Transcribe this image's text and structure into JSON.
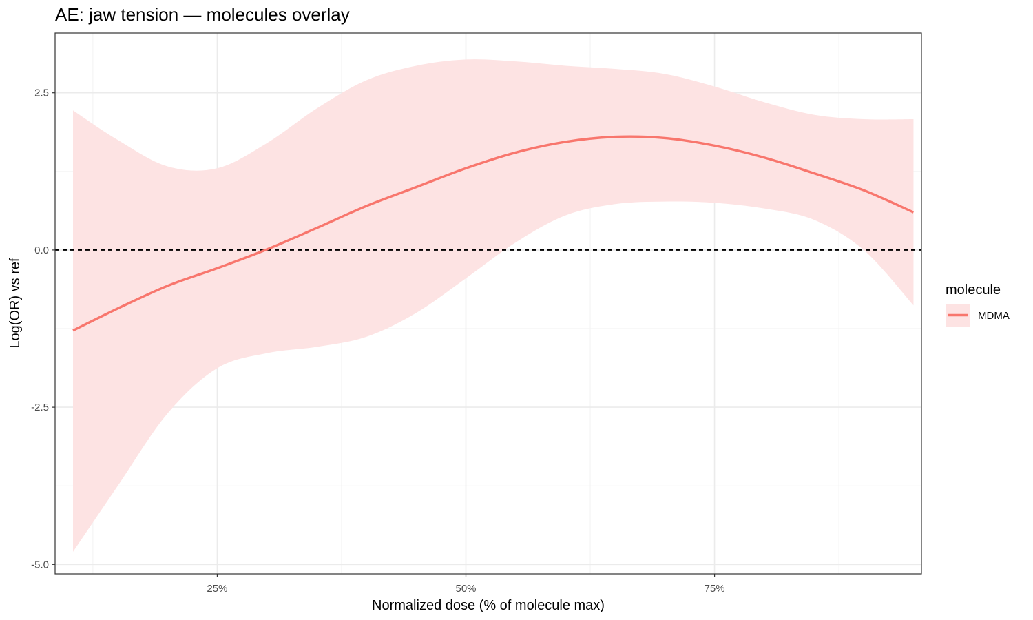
{
  "chart_data": {
    "type": "line",
    "title": "AE: jaw tension — molecules overlay",
    "xlabel": "Normalized dose (% of molecule max)",
    "ylabel": "Log(OR) vs ref",
    "xlim": [
      0.087,
      0.958
    ],
    "ylim": [
      -5.15,
      3.45
    ],
    "x_ticks": [
      {
        "value": 0.25,
        "label": "25%"
      },
      {
        "value": 0.5,
        "label": "50%"
      },
      {
        "value": 0.75,
        "label": "75%"
      }
    ],
    "x_minor_ticks": [
      0.125,
      0.375,
      0.625,
      0.875
    ],
    "y_ticks": [
      {
        "value": 2.5,
        "label": "2.5"
      },
      {
        "value": 0.0,
        "label": "0.0"
      },
      {
        "value": -2.5,
        "label": "-2.5"
      },
      {
        "value": -5.0,
        "label": "-5.0"
      }
    ],
    "y_minor_ticks": [
      1.25,
      -1.25,
      -3.75
    ],
    "reference_line": {
      "y": 0,
      "style": "dashed",
      "color": "#000000"
    },
    "grid": true,
    "legend": {
      "title": "molecule",
      "position": "right"
    },
    "series": [
      {
        "name": "MDMA",
        "color": "#F8766D",
        "band_color": "#FDE3E3",
        "x": [
          0.105,
          0.15,
          0.2,
          0.25,
          0.3,
          0.35,
          0.4,
          0.45,
          0.5,
          0.55,
          0.6,
          0.65,
          0.7,
          0.75,
          0.8,
          0.85,
          0.9,
          0.95
        ],
        "y": [
          -1.28,
          -0.93,
          -0.57,
          -0.29,
          0.01,
          0.35,
          0.7,
          1.0,
          1.3,
          1.55,
          1.72,
          1.8,
          1.78,
          1.66,
          1.47,
          1.22,
          0.95,
          0.6
        ],
        "upper": [
          2.22,
          1.75,
          1.33,
          1.3,
          1.7,
          2.25,
          2.7,
          2.93,
          3.03,
          3.0,
          2.93,
          2.88,
          2.8,
          2.6,
          2.35,
          2.15,
          2.08,
          2.08
        ],
        "lower": [
          -4.8,
          -3.75,
          -2.6,
          -1.88,
          -1.64,
          -1.54,
          -1.38,
          -1.0,
          -0.45,
          0.12,
          0.55,
          0.73,
          0.77,
          0.75,
          0.66,
          0.48,
          0.0,
          -0.88
        ]
      }
    ]
  }
}
